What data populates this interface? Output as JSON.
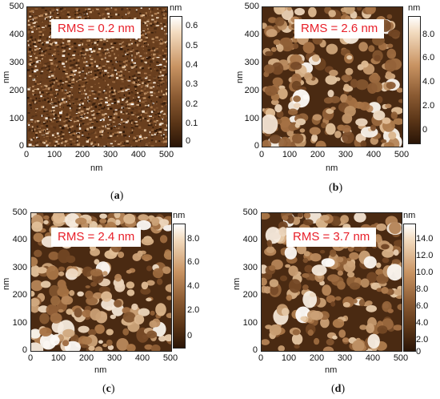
{
  "colors": {
    "dark": "#2a1507",
    "mid": "#8a5a32",
    "light": "#ffffff",
    "rms_text": "#e8202a"
  },
  "panels": [
    {
      "id": "a",
      "rms": "RMS = 0.2 nm",
      "x_label": "nm",
      "y_label": "nm",
      "x_ticks": [
        "0",
        "100",
        "200",
        "300",
        "400",
        "500"
      ],
      "y_ticks": [
        "500",
        "400",
        "300",
        "200",
        "100",
        "0"
      ],
      "colorbar_unit": "nm",
      "colorbar_ticks": [
        "0.6",
        "0.5",
        "0.4",
        "0.3",
        "0.2",
        "0.1",
        "0"
      ],
      "caption": "a",
      "texture": "fine"
    },
    {
      "id": "b",
      "rms": "RMS = 2.6 nm",
      "x_label": "nm",
      "y_label": "nm",
      "x_ticks": [
        "0",
        "100",
        "200",
        "300",
        "400",
        "500"
      ],
      "y_ticks": [
        "500",
        "400",
        "300",
        "200",
        "100",
        "0"
      ],
      "colorbar_unit": "nm",
      "colorbar_ticks": [
        "8.0",
        "6.0",
        "4.0",
        "2.0",
        "0"
      ],
      "caption": "b",
      "texture": "grain"
    },
    {
      "id": "c",
      "rms": "RMS = 2.4 nm",
      "x_label": "nm",
      "y_label": "nm",
      "x_ticks": [
        "0",
        "100",
        "200",
        "300",
        "400",
        "500"
      ],
      "y_ticks": [
        "500",
        "400",
        "300",
        "200",
        "100",
        "0"
      ],
      "colorbar_unit": "nm",
      "colorbar_ticks": [
        "8.0",
        "6.0",
        "4.0",
        "2.0",
        "0"
      ],
      "caption": "c",
      "texture": "grain"
    },
    {
      "id": "d",
      "rms": "RMS = 3.7 nm",
      "x_label": "nm",
      "y_label": "nm",
      "x_ticks": [
        "0",
        "100",
        "200",
        "300",
        "400",
        "500"
      ],
      "y_ticks": [
        "500",
        "400",
        "300",
        "200",
        "100",
        "0"
      ],
      "colorbar_unit": "nm",
      "colorbar_ticks": [
        "14.0",
        "12.0",
        "10.0",
        "8.0",
        "6.0",
        "4.0",
        "2.0",
        "0"
      ],
      "caption": "d",
      "texture": "grain"
    }
  ]
}
